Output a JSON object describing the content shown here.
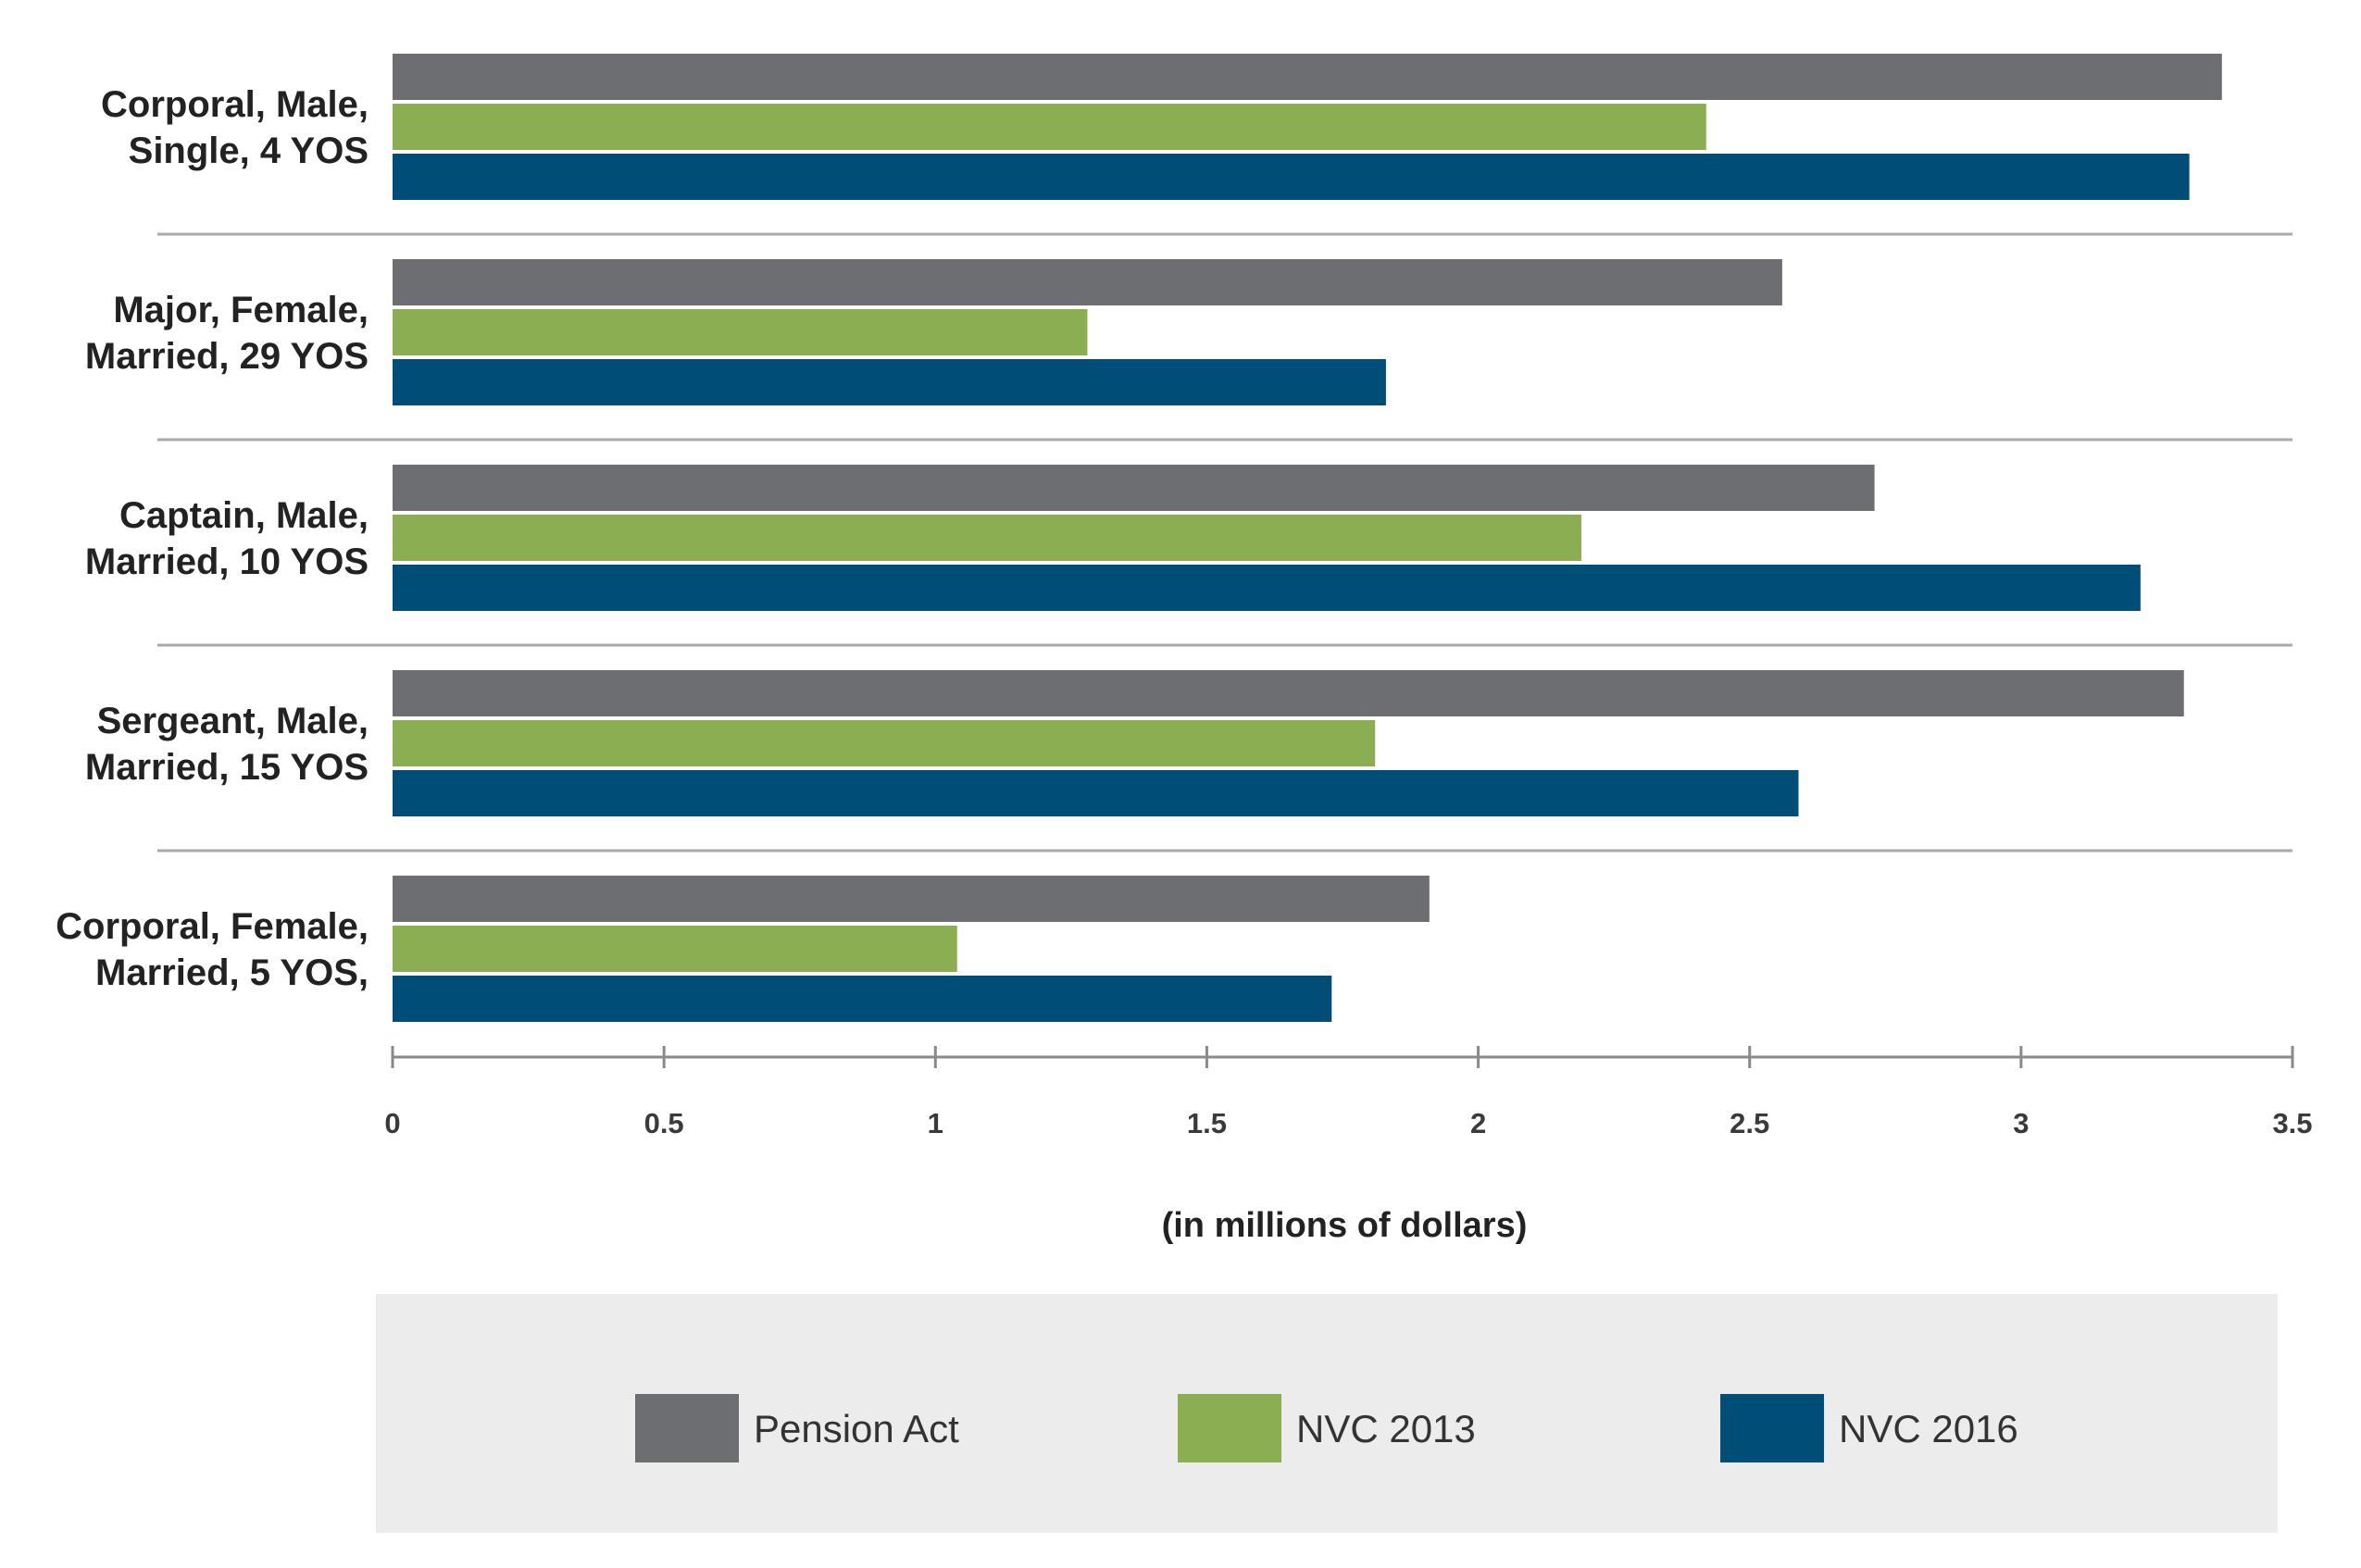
{
  "chart_data": {
    "type": "bar",
    "orientation": "horizontal",
    "categories": [
      [
        "Corporal, Male,",
        "Single, 4 YOS"
      ],
      [
        "Major, Female,",
        "Married, 29 YOS"
      ],
      [
        "Captain, Male,",
        "Married, 10 YOS"
      ],
      [
        "Sergeant, Male,",
        "Married, 15 YOS"
      ],
      [
        "Corporal, Female,",
        "Married, 5 YOS,"
      ]
    ],
    "series": [
      {
        "name": "Pension Act",
        "color": "#6d6e71",
        "values": [
          3.37,
          2.56,
          2.73,
          3.3,
          1.91
        ]
      },
      {
        "name": "NVC 2013",
        "color": "#8cae53",
        "values": [
          2.42,
          1.28,
          2.19,
          1.81,
          1.04
        ]
      },
      {
        "name": "NVC 2016",
        "color": "#004d77",
        "values": [
          3.31,
          1.83,
          3.22,
          2.59,
          1.73
        ]
      }
    ],
    "xlim": [
      0,
      3.5
    ],
    "ticks": [
      0,
      0.5,
      1,
      1.5,
      2,
      2.5,
      3,
      3.5
    ],
    "tick_labels": [
      "0",
      "0.5",
      "1",
      "1.5",
      "2",
      "2.5",
      "3",
      "3.5"
    ],
    "xlabel": "(in millions of dollars)",
    "ylabel": "",
    "title": "",
    "legend_position": "bottom",
    "legend_background": "#ececec",
    "separator_color": "#a7a9ac",
    "axis_color": "#8a8a8a"
  }
}
